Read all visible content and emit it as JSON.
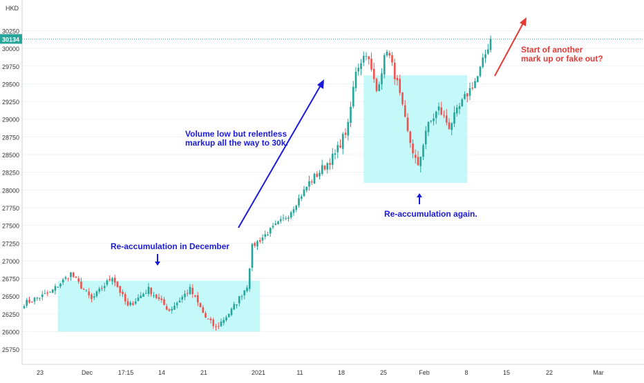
{
  "currency_label": "HKD",
  "last_price_label": "30134",
  "colors": {
    "up": "#26a69a",
    "down": "#ef5350",
    "zone": "#b2f5f5",
    "annotation_blue": "#1a1adb",
    "annotation_red": "#e53935",
    "axis_text": "#333333",
    "grid": "#f0f3fa",
    "price_tag": "#26a69a"
  },
  "chart_data": {
    "type": "candlestick",
    "title": "",
    "y_axis": {
      "range": [
        25600,
        30450
      ],
      "ticks": [
        25750,
        26000,
        26250,
        26500,
        26750,
        27000,
        27250,
        27500,
        27750,
        28000,
        28250,
        28500,
        28750,
        29000,
        29250,
        29500,
        29750,
        30000,
        30250
      ]
    },
    "x_axis": {
      "tick_labels": [
        "23",
        "Dec",
        "17:15",
        "14",
        "21",
        "2021",
        "11",
        "18",
        "25",
        "Feb",
        "8",
        "15",
        "22",
        "Mar"
      ]
    },
    "anchors": [
      {
        "bar": 0,
        "price": 26400
      },
      {
        "bar": 10,
        "price": 26550
      },
      {
        "bar": 18,
        "price": 26820
      },
      {
        "bar": 26,
        "price": 26450
      },
      {
        "bar": 34,
        "price": 26780
      },
      {
        "bar": 40,
        "price": 26350
      },
      {
        "bar": 48,
        "price": 26600
      },
      {
        "bar": 56,
        "price": 26300
      },
      {
        "bar": 64,
        "price": 26600
      },
      {
        "bar": 70,
        "price": 26200
      },
      {
        "bar": 74,
        "price": 26050
      },
      {
        "bar": 80,
        "price": 26300
      },
      {
        "bar": 86,
        "price": 26650
      },
      {
        "bar": 88,
        "price": 27200
      },
      {
        "bar": 94,
        "price": 27400
      },
      {
        "bar": 102,
        "price": 27650
      },
      {
        "bar": 110,
        "price": 28100
      },
      {
        "bar": 120,
        "price": 28500
      },
      {
        "bar": 125,
        "price": 28900
      },
      {
        "bar": 128,
        "price": 29700
      },
      {
        "bar": 132,
        "price": 29950
      },
      {
        "bar": 136,
        "price": 29400
      },
      {
        "bar": 140,
        "price": 30000
      },
      {
        "bar": 144,
        "price": 29500
      },
      {
        "bar": 148,
        "price": 28800
      },
      {
        "bar": 152,
        "price": 28300
      },
      {
        "bar": 155,
        "price": 28850
      },
      {
        "bar": 160,
        "price": 29150
      },
      {
        "bar": 164,
        "price": 28900
      },
      {
        "bar": 170,
        "price": 29300
      },
      {
        "bar": 175,
        "price": 29600
      },
      {
        "bar": 180,
        "price": 30134
      }
    ],
    "bar_count": 181,
    "zones": [
      {
        "name": "Re-accumulation in December",
        "from_bar": 13,
        "to_bar": 91,
        "low": 26000,
        "high": 26720
      },
      {
        "name": "Re-accumulation again.",
        "from_bar": 131,
        "to_bar": 171,
        "low": 28100,
        "high": 29620
      }
    ]
  },
  "annotations": {
    "december": "Re-accumulation in December",
    "volume_line1": "Volume low but relentless",
    "volume_line2": "markup all the way to 30k.",
    "again": "Re-accumulation again.",
    "question_line1": "Start of another",
    "question_line2": "mark up or fake out?"
  }
}
